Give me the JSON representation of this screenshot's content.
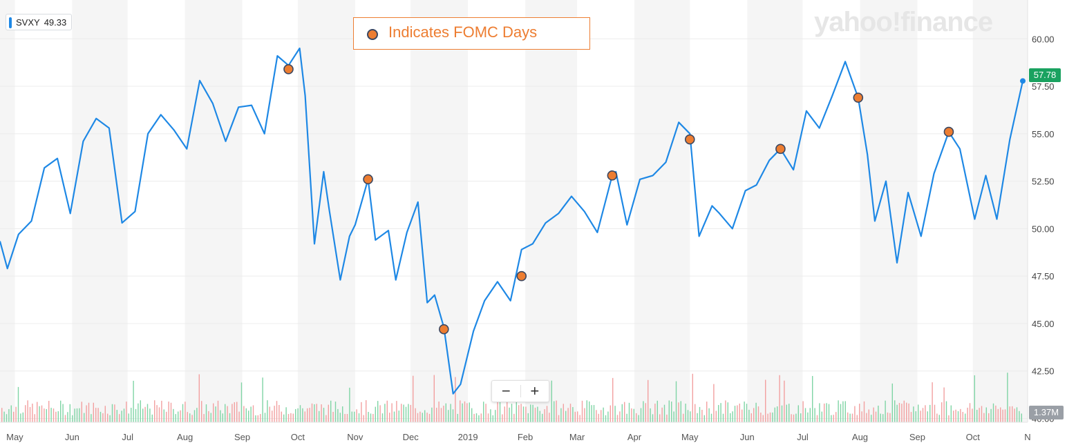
{
  "ticker": {
    "symbol": "SVXY",
    "value": "49.33"
  },
  "legend_text": "Indicates FOMC Days",
  "watermark": "yahoo!finance",
  "zoom": {
    "minus": "−",
    "plus": "+"
  },
  "last_price_label": "57.78",
  "volume_label": "1.37M",
  "colors": {
    "line": "#1e88e5",
    "fomc_marker": "#ed7d31",
    "fomc_border": "#3a4660",
    "volume_up": "#7fd4a5",
    "volume_down": "#f2a0a0",
    "price_tag": "#1aa260"
  },
  "chart_data": {
    "type": "line",
    "ylim": [
      40.6,
      61.5
    ],
    "y_ticks": [
      60.0,
      57.5,
      55.0,
      52.5,
      50.0,
      47.5,
      45.0,
      42.5,
      40.0
    ],
    "y_tick_labels": [
      "60.00",
      "57.50",
      "55.00",
      "52.50",
      "50.00",
      "47.50",
      "45.00",
      "42.50",
      "40.00"
    ],
    "x_ticks": [
      "May",
      "Jun",
      "Jul",
      "Aug",
      "Sep",
      "Oct",
      "Nov",
      "Dec",
      "2019",
      "Feb",
      "Mar",
      "Apr",
      "May",
      "Jun",
      "Jul",
      "Aug",
      "Sep",
      "Oct",
      "N"
    ],
    "x": [
      "2018-04-23",
      "2018-04-27",
      "2018-05-03",
      "2018-05-10",
      "2018-05-17",
      "2018-05-24",
      "2018-05-31",
      "2018-06-07",
      "2018-06-14",
      "2018-06-21",
      "2018-06-28",
      "2018-07-05",
      "2018-07-12",
      "2018-07-19",
      "2018-07-26",
      "2018-08-02",
      "2018-08-09",
      "2018-08-16",
      "2018-08-23",
      "2018-08-30",
      "2018-09-06",
      "2018-09-13",
      "2018-09-20",
      "2018-09-26",
      "2018-10-02",
      "2018-10-05",
      "2018-10-10",
      "2018-10-15",
      "2018-10-18",
      "2018-10-24",
      "2018-10-29",
      "2018-11-01",
      "2018-11-08",
      "2018-11-12",
      "2018-11-19",
      "2018-11-23",
      "2018-11-29",
      "2018-12-05",
      "2018-12-10",
      "2018-12-14",
      "2018-12-19",
      "2018-12-24",
      "2018-12-28",
      "2019-01-04",
      "2019-01-10",
      "2019-01-17",
      "2019-01-24",
      "2019-01-30",
      "2019-02-05",
      "2019-02-12",
      "2019-02-19",
      "2019-02-26",
      "2019-03-05",
      "2019-03-12",
      "2019-03-20",
      "2019-03-22",
      "2019-03-28",
      "2019-04-04",
      "2019-04-11",
      "2019-04-18",
      "2019-04-25",
      "2019-05-01",
      "2019-05-06",
      "2019-05-13",
      "2019-05-17",
      "2019-05-24",
      "2019-05-31",
      "2019-06-06",
      "2019-06-13",
      "2019-06-19",
      "2019-06-26",
      "2019-07-03",
      "2019-07-10",
      "2019-07-17",
      "2019-07-24",
      "2019-07-31",
      "2019-08-05",
      "2019-08-09",
      "2019-08-15",
      "2019-08-21",
      "2019-08-27",
      "2019-09-03",
      "2019-09-10",
      "2019-09-18",
      "2019-09-24",
      "2019-10-02",
      "2019-10-08",
      "2019-10-14",
      "2019-10-21",
      "2019-10-28"
    ],
    "y": [
      49.33,
      47.9,
      49.7,
      50.4,
      53.2,
      53.7,
      50.8,
      54.6,
      55.8,
      55.3,
      50.3,
      50.9,
      55.0,
      56.0,
      55.2,
      54.2,
      57.8,
      56.6,
      54.6,
      56.4,
      56.5,
      55.0,
      59.1,
      58.6,
      59.5,
      57.0,
      49.2,
      53.0,
      51.0,
      47.3,
      49.6,
      50.2,
      52.6,
      49.4,
      49.9,
      47.3,
      49.8,
      51.4,
      46.1,
      46.5,
      44.8,
      41.3,
      41.8,
      44.6,
      46.2,
      47.2,
      46.2,
      48.9,
      49.2,
      50.3,
      50.8,
      51.7,
      50.9,
      49.8,
      52.8,
      53.0,
      50.2,
      52.6,
      52.8,
      53.5,
      55.6,
      55.0,
      49.6,
      51.2,
      50.8,
      50.0,
      52.0,
      52.3,
      53.6,
      54.2,
      53.1,
      56.2,
      55.3,
      57.0,
      58.8,
      56.9,
      53.9,
      50.4,
      52.5,
      48.2,
      51.9,
      49.6,
      52.9,
      55.1,
      54.2,
      50.5,
      52.8,
      50.5,
      54.7,
      57.78
    ],
    "fomc_days": [
      {
        "date": "2018-09-26",
        "y": 58.4
      },
      {
        "date": "2018-11-08",
        "y": 52.6
      },
      {
        "date": "2018-12-19",
        "y": 44.7
      },
      {
        "date": "2019-01-30",
        "y": 47.5
      },
      {
        "date": "2019-03-20",
        "y": 52.8
      },
      {
        "date": "2019-05-01",
        "y": 54.7
      },
      {
        "date": "2019-06-19",
        "y": 54.2
      },
      {
        "date": "2019-07-31",
        "y": 56.9
      },
      {
        "date": "2019-09-18",
        "y": 55.1
      }
    ],
    "last_value": 57.78,
    "legend": "top-center",
    "grid": true
  }
}
